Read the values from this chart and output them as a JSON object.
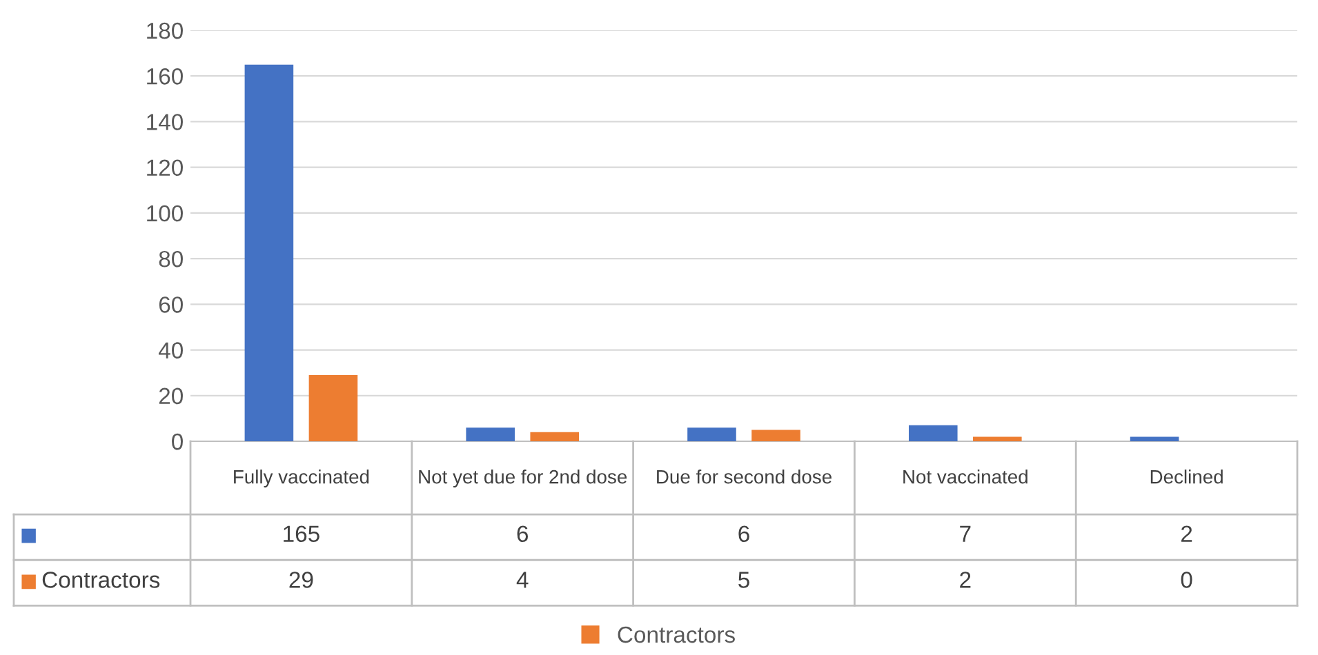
{
  "chart_data": {
    "type": "bar",
    "categories": [
      "Fully vaccinated",
      "Not yet due for 2nd dose",
      "Due for second dose",
      "Not vaccinated",
      "Declined"
    ],
    "series": [
      {
        "color": "#4472c4",
        "values": [
          165,
          6,
          6,
          7,
          2
        ]
      },
      {
        "name": "Contractors",
        "color": "#ed7d31",
        "values": [
          29,
          4,
          5,
          2,
          0
        ]
      }
    ],
    "ylim": [
      0,
      180
    ],
    "yticks": [
      0,
      20,
      40,
      60,
      80,
      100,
      120,
      140,
      160,
      180
    ],
    "grid": "y",
    "legend": "bottom",
    "data_labels": true
  }
}
